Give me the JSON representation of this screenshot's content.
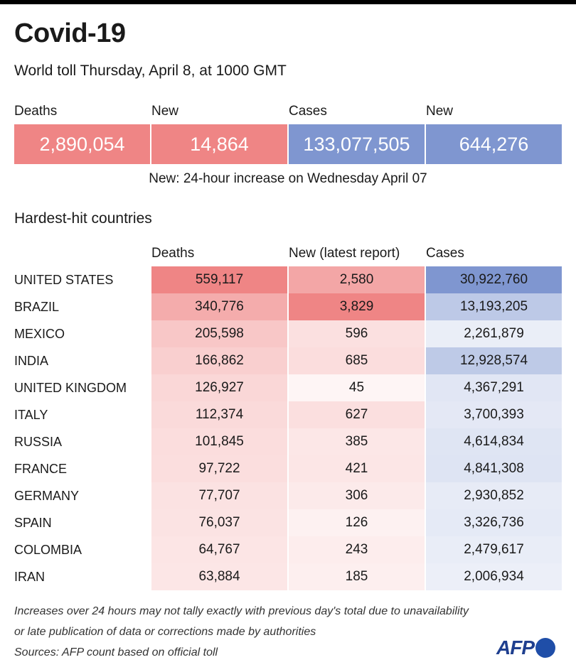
{
  "title": "Covid-19",
  "subtitle": "World toll Thursday, April 8, at 1000 GMT",
  "summary": {
    "labels": [
      "Deaths",
      "New",
      "Cases",
      "New"
    ],
    "values": [
      "2,890,054",
      "14,864",
      "133,077,505",
      "644,276"
    ],
    "note": "New: 24-hour increase on Wednesday April 07"
  },
  "section_title": "Hardest-hit countries",
  "chart_data": {
    "type": "table",
    "columns": [
      "Deaths",
      "New (latest report)",
      "Cases"
    ],
    "rows": [
      {
        "country": "UNITED STATES",
        "deaths": "559,117",
        "new": "2,580",
        "cases": "30,922,760"
      },
      {
        "country": "BRAZIL",
        "deaths": "340,776",
        "new": "3,829",
        "cases": "13,193,205"
      },
      {
        "country": "MEXICO",
        "deaths": "205,598",
        "new": "596",
        "cases": "2,261,879"
      },
      {
        "country": "INDIA",
        "deaths": "166,862",
        "new": "685",
        "cases": "12,928,574"
      },
      {
        "country": "UNITED KINGDOM",
        "deaths": "126,927",
        "new": "45",
        "cases": "4,367,291"
      },
      {
        "country": "ITALY",
        "deaths": "112,374",
        "new": "627",
        "cases": "3,700,393"
      },
      {
        "country": "RUSSIA",
        "deaths": "101,845",
        "new": "385",
        "cases": "4,614,834"
      },
      {
        "country": "FRANCE",
        "deaths": "97,722",
        "new": "421",
        "cases": "4,841,308"
      },
      {
        "country": "GERMANY",
        "deaths": "77,707",
        "new": "306",
        "cases": "2,930,852"
      },
      {
        "country": "SPAIN",
        "deaths": "76,037",
        "new": "126",
        "cases": "3,326,736"
      },
      {
        "country": "COLOMBIA",
        "deaths": "64,767",
        "new": "243",
        "cases": "2,479,617"
      },
      {
        "country": "IRAN",
        "deaths": "63,884",
        "new": "185",
        "cases": "2,006,934"
      }
    ],
    "colors": {
      "deaths": "#ef8585",
      "new": "#ef8585",
      "cases": "#7f96d0"
    }
  },
  "footnotes": [
    "Increases over 24 hours may not tally exactly with previous day's total due to unavailability",
    "or late publication of data or corrections made by authorities",
    "Sources: AFP count based on official toll"
  ],
  "logo": {
    "text": "AFP"
  }
}
